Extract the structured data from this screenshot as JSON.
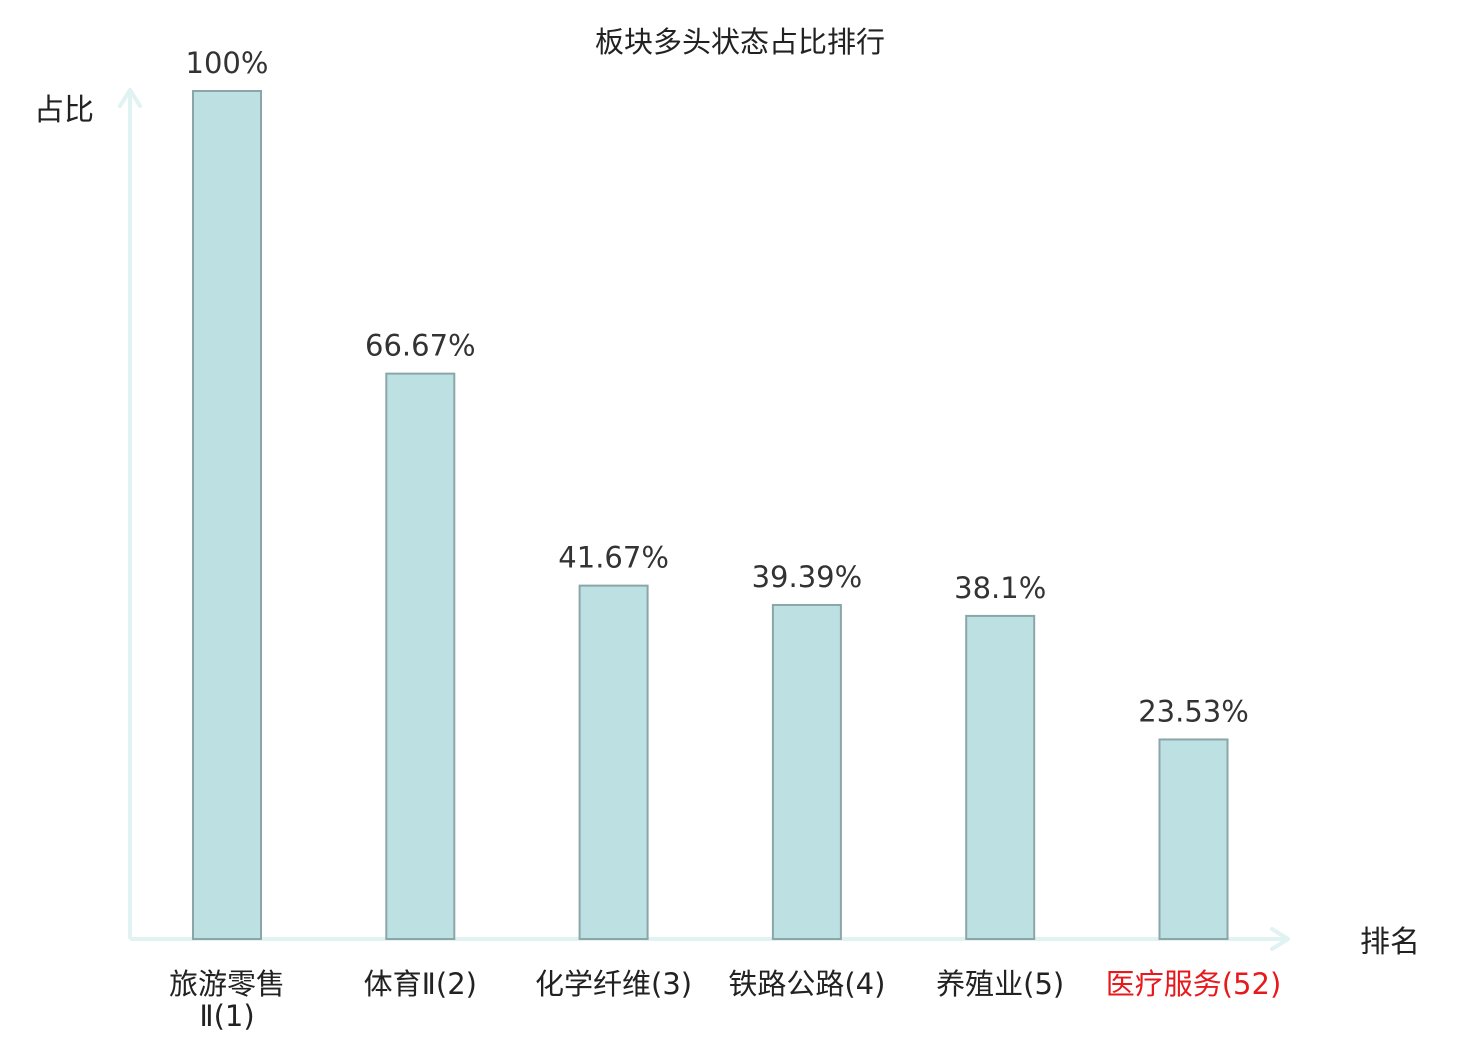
{
  "chart_data": {
    "type": "bar",
    "title": "板块多头状态占比排行",
    "ylabel": "占比",
    "xlabel": "排名",
    "categories": [
      "旅游零售Ⅱ(1)",
      "体育Ⅱ(2)",
      "化学纤维(3)",
      "铁路公路(4)",
      "养殖业(5)",
      "医疗服务(52)"
    ],
    "category_lines": [
      [
        "旅游零售",
        "Ⅱ(1)"
      ],
      [
        "体育Ⅱ(2)"
      ],
      [
        "化学纤维(3)"
      ],
      [
        "铁路公路(4)"
      ],
      [
        "养殖业(5)"
      ],
      [
        "医疗服务(52)"
      ]
    ],
    "values": [
      100,
      66.67,
      41.67,
      39.39,
      38.1,
      23.53
    ],
    "value_labels": [
      "100%",
      "66.67%",
      "41.67%",
      "39.39%",
      "38.1%",
      "23.53%"
    ],
    "highlight_index": 5,
    "ylim": [
      0,
      100
    ],
    "grid": false,
    "colors": {
      "bar_fill": "#bde0e3",
      "bar_stroke": "#8aa6a8",
      "axis": "#e0f2f1",
      "text": "#222222",
      "label_text": "#333333",
      "highlight": "#e8191c"
    }
  }
}
